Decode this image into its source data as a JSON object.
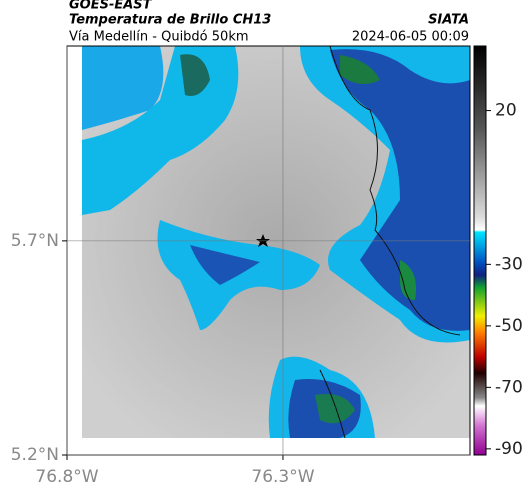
{
  "header": {
    "satellite": "GOES-EAST",
    "title": "Temperatura de Brillo CH13",
    "subtitle": "Vía Medellín - Quibdó 50km",
    "source": "SIATA",
    "datetime": "2024-06-05 00:09"
  },
  "map": {
    "xlim": [
      -76.8,
      -75.867
    ],
    "ylim": [
      5.2,
      6.155
    ],
    "xticks": [
      {
        "value": -76.8,
        "label": "76.8°W"
      },
      {
        "value": -76.3,
        "label": "76.3°W"
      }
    ],
    "yticks": [
      {
        "value": 5.7,
        "label": "5.7°N"
      },
      {
        "value": 5.2,
        "label": "5.2°N"
      }
    ],
    "grid": true
  },
  "colorbar": {
    "lim": [
      -92,
      41
    ],
    "ticks": [
      20,
      -30,
      -50,
      -70,
      -90
    ]
  }
}
